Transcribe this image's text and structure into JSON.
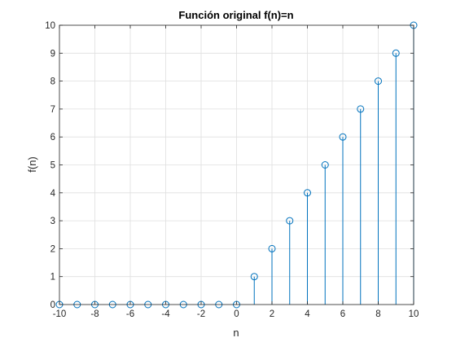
{
  "chart_data": {
    "type": "stem",
    "title": "Función original f(n)=n",
    "xlabel": "n",
    "ylabel": "f(n)",
    "x": [
      -10,
      -9,
      -8,
      -7,
      -6,
      -5,
      -4,
      -3,
      -2,
      -1,
      0,
      1,
      2,
      3,
      4,
      5,
      6,
      7,
      8,
      9,
      10
    ],
    "y": [
      0,
      0,
      0,
      0,
      0,
      0,
      0,
      0,
      0,
      0,
      0,
      1,
      2,
      3,
      4,
      5,
      6,
      7,
      8,
      9,
      10
    ],
    "xlim": [
      -10,
      10
    ],
    "ylim": [
      0,
      10
    ],
    "xticks": [
      -10,
      -8,
      -6,
      -4,
      -2,
      0,
      2,
      4,
      6,
      8,
      10
    ],
    "yticks": [
      0,
      1,
      2,
      3,
      4,
      5,
      6,
      7,
      8,
      9,
      10
    ],
    "grid": true,
    "marker": "open-circle",
    "colors": {
      "series": "#0072BD",
      "grid": "#dfdfdf",
      "axis": "#262626"
    }
  }
}
